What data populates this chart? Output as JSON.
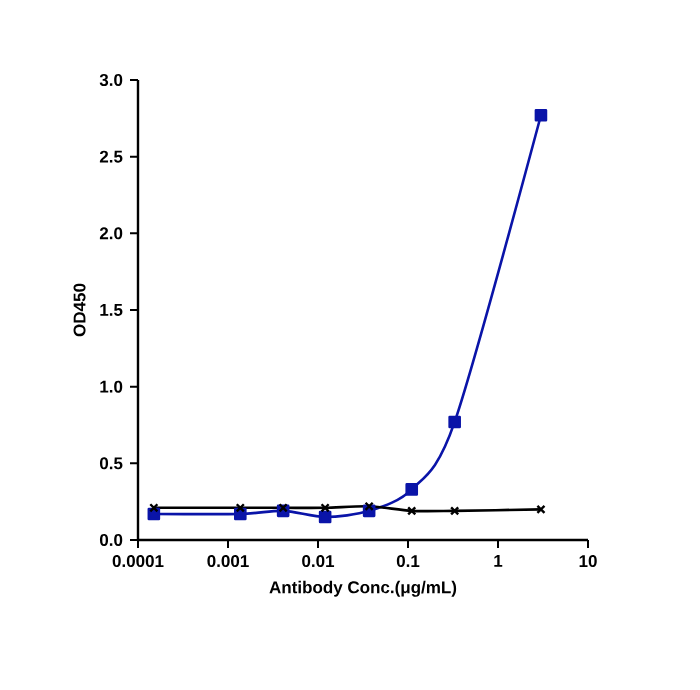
{
  "chart_data": {
    "type": "line",
    "xlabel": "Antibody Conc.(μg/mL)",
    "ylabel": "OD450",
    "log": "x",
    "xlim": [
      0.0001,
      10
    ],
    "xticks": [
      0.0001,
      0.001,
      0.01,
      0.1,
      1,
      10
    ],
    "ylim": [
      0,
      3
    ],
    "yticks": [
      {
        "value": 0,
        "label": "0.0"
      },
      {
        "value": 0.5,
        "label": "0.5"
      },
      {
        "value": 1,
        "label": "1.0"
      },
      {
        "value": 1.5,
        "label": "1.5"
      },
      {
        "value": 2,
        "label": "2.0"
      },
      {
        "value": 2.5,
        "label": "2.5"
      },
      {
        "value": 3,
        "label": "3.0"
      }
    ],
    "grid": false,
    "x": [
      0.00015,
      0.00137,
      0.0041,
      0.012,
      0.037,
      0.11,
      0.33,
      3
    ],
    "series": [
      {
        "color": "#0a14a8",
        "marker": "square",
        "values": [
          0.17,
          0.17,
          0.19,
          0.15,
          0.19,
          0.33,
          0.77,
          2.77
        ]
      },
      {
        "color": "#000000",
        "marker": "cross",
        "values": [
          0.21,
          0.21,
          0.21,
          0.21,
          0.22,
          0.19,
          0.19,
          0.2
        ]
      }
    ]
  }
}
